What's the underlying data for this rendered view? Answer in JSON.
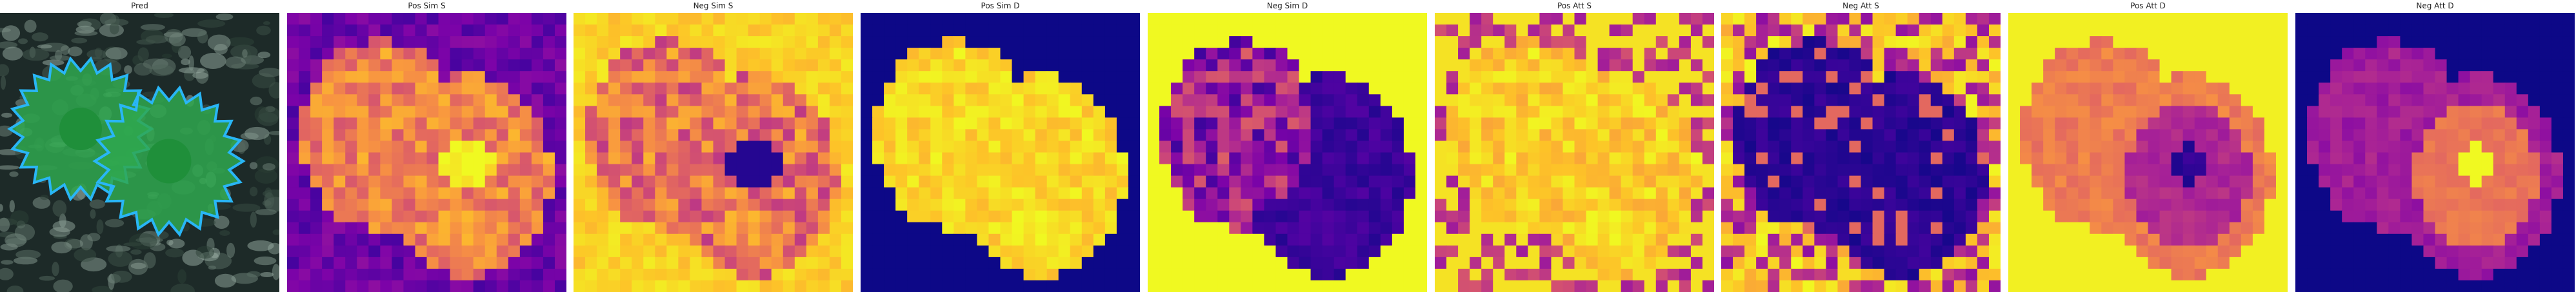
{
  "figure": {
    "panels": [
      {
        "title": "Pred",
        "kind": "photo_overlay"
      },
      {
        "title": "Pos Sim S",
        "kind": "heatmap",
        "colormap": "plasma",
        "pattern": "pos_sim_s"
      },
      {
        "title": "Neg Sim S",
        "kind": "heatmap",
        "colormap": "plasma",
        "pattern": "neg_sim_s"
      },
      {
        "title": "Pos Sim D",
        "kind": "heatmap",
        "colormap": "plasma",
        "pattern": "pos_sim_d"
      },
      {
        "title": "Neg Sim D",
        "kind": "heatmap",
        "colormap": "plasma",
        "pattern": "neg_sim_d"
      },
      {
        "title": "Pos Att S",
        "kind": "heatmap",
        "colormap": "plasma",
        "pattern": "pos_att_s"
      },
      {
        "title": "Neg Att S",
        "kind": "heatmap",
        "colormap": "plasma",
        "pattern": "neg_att_s"
      },
      {
        "title": "Pos Att D",
        "kind": "heatmap",
        "colormap": "plasma",
        "pattern": "pos_att_d"
      },
      {
        "title": "Neg Att D",
        "kind": "heatmap",
        "colormap": "plasma",
        "pattern": "neg_att_d"
      }
    ],
    "colors": {
      "mask_fill": "#2fa84f",
      "mask_outline": "#29b6f6",
      "flower_center": "#1f8f3a",
      "background_dark": "#1d2a28"
    }
  }
}
